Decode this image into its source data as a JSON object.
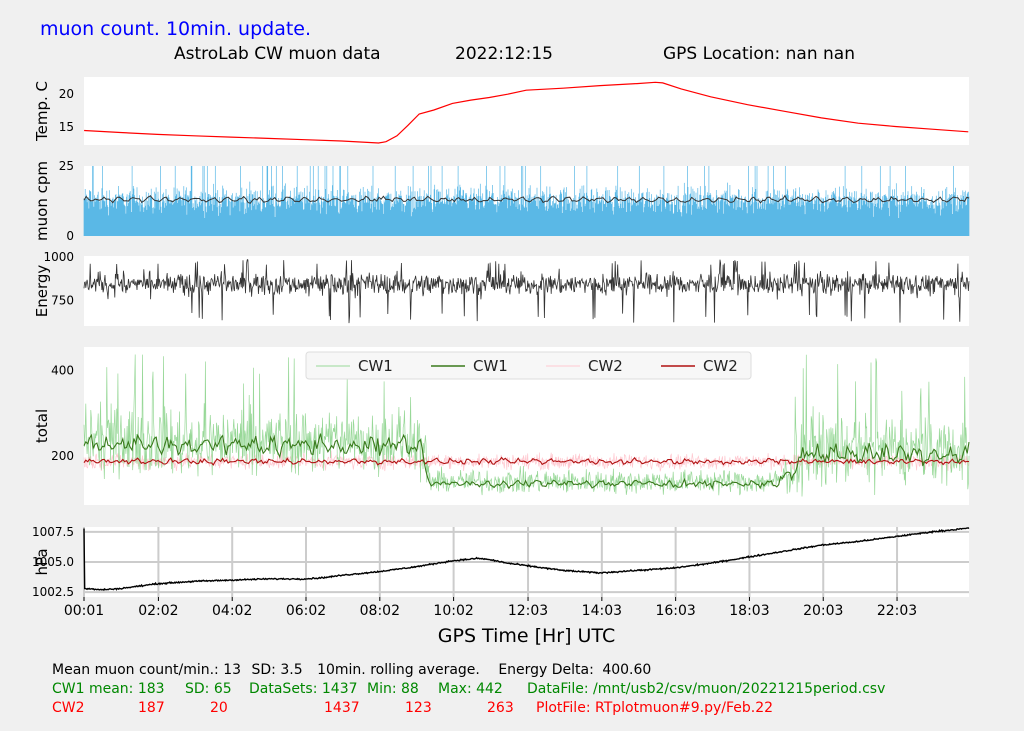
{
  "banner": {
    "text": "muon count.  10min. update.",
    "color": "#0000ff"
  },
  "header": {
    "title": "AstroLab CW muon data",
    "date": "2022:12:15",
    "gps": "GPS Location: nan   nan"
  },
  "chart_data": [
    {
      "type": "line",
      "panel": "temperature",
      "ylabel": "Temp. C",
      "yticks": [
        15,
        20
      ],
      "ylim": [
        12.3,
        22.6
      ],
      "grid": false,
      "x": [
        0.02,
        1,
        2,
        3,
        4,
        5,
        6,
        7,
        8,
        8.2,
        8.5,
        8.8,
        9.1,
        9.5,
        10,
        10.5,
        11,
        11.5,
        12,
        13,
        14,
        15,
        15.5,
        15.7,
        16.2,
        17,
        18,
        19,
        20,
        21,
        22,
        23,
        23.98
      ],
      "y": [
        14.5,
        14.2,
        13.9,
        13.7,
        13.5,
        13.3,
        13.1,
        12.9,
        12.6,
        12.8,
        13.7,
        15.3,
        17.0,
        17.6,
        18.6,
        19.1,
        19.5,
        20.0,
        20.6,
        20.9,
        21.3,
        21.6,
        21.8,
        21.7,
        20.8,
        19.6,
        18.4,
        17.4,
        16.4,
        15.6,
        15.1,
        14.7,
        14.3
      ],
      "color": "#ff0000"
    },
    {
      "type": "line",
      "panel": "muon_cpm",
      "ylabel": "muon cpm",
      "yticks": [
        0,
        25
      ],
      "ylim": [
        0,
        25
      ],
      "grid": false,
      "series": [
        {
          "role": "raw",
          "mean": 13,
          "sd": 3.5,
          "max": 25,
          "color": "#5ab8e6"
        },
        {
          "role": "10min rolling average",
          "mean": 13,
          "band": [
            11.5,
            14.5
          ],
          "color": "#333333"
        }
      ]
    },
    {
      "type": "line",
      "panel": "energy",
      "ylabel": "Energy",
      "yticks": [
        750,
        1000
      ],
      "ylim": [
        605,
        1005
      ],
      "grid": false,
      "series": [
        {
          "role": "energy",
          "mean": 845,
          "range": [
            620,
            985
          ],
          "color": "#333333"
        }
      ]
    },
    {
      "type": "line",
      "panel": "total",
      "ylabel": "total",
      "yticks": [
        200,
        400
      ],
      "ylim": [
        85,
        455
      ],
      "grid": false,
      "legend": "top-center",
      "series": [
        {
          "name": "CW1",
          "role": "raw",
          "color": "#98d898",
          "levels": [
            [
              0,
              235
            ],
            [
              9.1,
              235
            ],
            [
              9.4,
              140
            ],
            [
              18.8,
              140
            ],
            [
              19.6,
              215
            ],
            [
              24,
              215
            ]
          ],
          "sd": 65
        },
        {
          "name": "CW1",
          "role": "rolling",
          "color": "#3a7a1c",
          "levels": [
            [
              0,
              225
            ],
            [
              9.1,
              225
            ],
            [
              9.4,
              135
            ],
            [
              18.8,
              135
            ],
            [
              19.6,
              205
            ],
            [
              24,
              205
            ]
          ]
        },
        {
          "name": "CW2",
          "role": "raw",
          "color": "#ffc8d0",
          "levels": [
            [
              0,
              187
            ],
            [
              24,
              187
            ]
          ],
          "sd": 20
        },
        {
          "name": "CW2",
          "role": "rolling",
          "color": "#b01010",
          "levels": [
            [
              0,
              187
            ],
            [
              24,
              187
            ]
          ]
        }
      ]
    },
    {
      "type": "line",
      "panel": "pressure",
      "ylabel": "hPa",
      "yticks": [
        "1002.5",
        "1005.0",
        "1007.5"
      ],
      "ylim": [
        1002.1,
        1007.9
      ],
      "grid": true,
      "x": [
        0.02,
        0.5,
        1,
        2,
        3,
        4,
        5,
        6,
        6.5,
        7,
        8,
        9,
        10,
        10.7,
        11,
        11.5,
        12,
        12.5,
        13,
        13.5,
        14,
        15,
        16,
        17,
        18,
        19,
        20,
        21,
        22,
        23,
        23.98
      ],
      "y": [
        1002.8,
        1002.7,
        1002.8,
        1003.2,
        1003.4,
        1003.5,
        1003.6,
        1003.6,
        1003.7,
        1003.9,
        1004.2,
        1004.6,
        1005.1,
        1005.3,
        1005.2,
        1004.9,
        1004.7,
        1004.5,
        1004.3,
        1004.2,
        1004.1,
        1004.3,
        1004.5,
        1004.9,
        1005.4,
        1005.9,
        1006.4,
        1006.7,
        1007.1,
        1007.5,
        1007.8
      ],
      "color": "#000000"
    }
  ],
  "x_axis": {
    "label": "GPS Time  [Hr] UTC",
    "range_hours": [
      0.0167,
      24
    ],
    "ticks": [
      {
        "label": "00:01",
        "h": 0.0167
      },
      {
        "label": "02:02",
        "h": 2.033
      },
      {
        "label": "04:02",
        "h": 4.033
      },
      {
        "label": "06:02",
        "h": 6.033
      },
      {
        "label": "08:02",
        "h": 8.033
      },
      {
        "label": "10:02",
        "h": 10.033
      },
      {
        "label": "12:03",
        "h": 12.05
      },
      {
        "label": "14:03",
        "h": 14.05
      },
      {
        "label": "16:03",
        "h": 16.05
      },
      {
        "label": "18:03",
        "h": 18.05
      },
      {
        "label": "20:03",
        "h": 20.05
      },
      {
        "label": "22:03",
        "h": 22.05
      }
    ]
  },
  "stats": {
    "line1": {
      "mean_label": "Mean muon count/min.:",
      "mean": "13",
      "sd_label": "SD:",
      "sd": "3.5",
      "rolling": "10min. rolling average.",
      "energy_label": "Energy Delta:",
      "energy": "400.60"
    },
    "cw1": {
      "label": "CW1 mean: 183",
      "sd": "SD: 65",
      "datasets": "DataSets: 1437",
      "min": "Min: 88",
      "max": "Max: 442",
      "file": "DataFile: /mnt/usb2/csv/muon/20221215period.csv",
      "color": "#008800"
    },
    "cw2": {
      "label": "CW2",
      "mean": "187",
      "sd": "20",
      "datasets": "1437",
      "min": "123",
      "max": "263",
      "file": "PlotFile: RTplotmuon#9.py/Feb.22",
      "color": "#ff0000"
    }
  }
}
